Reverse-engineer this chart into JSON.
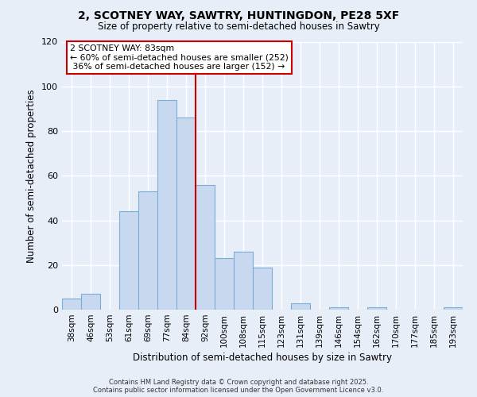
{
  "title1": "2, SCOTNEY WAY, SAWTRY, HUNTINGDON, PE28 5XF",
  "title2": "Size of property relative to semi-detached houses in Sawtry",
  "xlabel": "Distribution of semi-detached houses by size in Sawtry",
  "ylabel": "Number of semi-detached properties",
  "bar_labels": [
    "38sqm",
    "46sqm",
    "53sqm",
    "61sqm",
    "69sqm",
    "77sqm",
    "84sqm",
    "92sqm",
    "100sqm",
    "108sqm",
    "115sqm",
    "123sqm",
    "131sqm",
    "139sqm",
    "146sqm",
    "154sqm",
    "162sqm",
    "170sqm",
    "177sqm",
    "185sqm",
    "193sqm"
  ],
  "bar_heights": [
    5,
    7,
    0,
    44,
    53,
    94,
    86,
    56,
    23,
    26,
    19,
    0,
    3,
    0,
    1,
    0,
    1,
    0,
    0,
    0,
    1
  ],
  "bar_color": "#c8d8ee",
  "bar_edge_color": "#7aaed6",
  "vline_color": "#cc0000",
  "annotation_title": "2 SCOTNEY WAY: 83sqm",
  "annotation_line1": "← 60% of semi-detached houses are smaller (252)",
  "annotation_line2": " 36% of semi-detached houses are larger (152) →",
  "annotation_box_color": "#ffffff",
  "annotation_box_edge": "#cc0000",
  "footer1": "Contains HM Land Registry data © Crown copyright and database right 2025.",
  "footer2": "Contains public sector information licensed under the Open Government Licence v3.0.",
  "ylim": [
    0,
    120
  ],
  "background_color": "#e8eef8",
  "grid_color": "#ffffff"
}
